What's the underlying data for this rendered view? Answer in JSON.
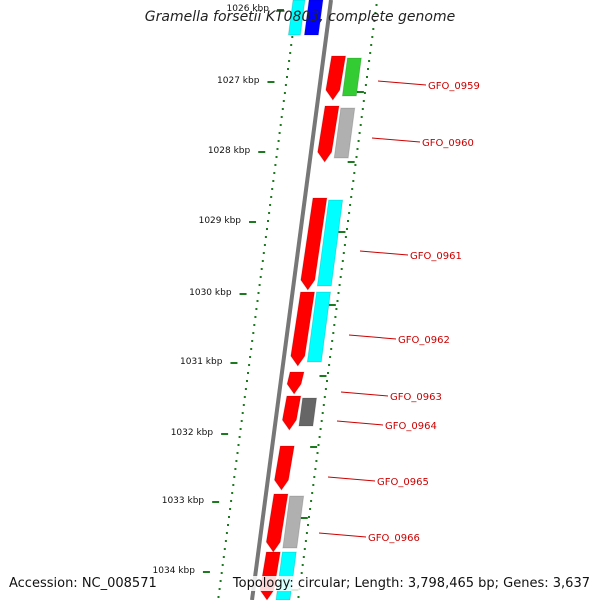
{
  "title": "Gramella forsetii KT0803, complete genome",
  "accession": "Accession: NC_008571",
  "topology": "Topology: circular; Length: 3,798,465 bp; Genes: 3,637",
  "colors": {
    "backbone": "#777777",
    "tick": "#1e7a1e",
    "forward_gene": "#ff0000",
    "label": "#cc0000",
    "cyan": "#00ffff",
    "green": "#33cc33",
    "gray": "#b0b0b0",
    "darkgray": "#666666",
    "blue": "#0000ff"
  },
  "kbp_labels": [
    "1026 kbp",
    "1027 kbp",
    "1028 kbp",
    "1029 kbp",
    "1030 kbp",
    "1031 kbp",
    "1032 kbp",
    "1033 kbp",
    "1034 kbp"
  ],
  "gene_labels": [
    "GFO_0959",
    "GFO_0960",
    "GFO_0961",
    "GFO_0962",
    "GFO_0963",
    "GFO_0964",
    "GFO_0965",
    "GFO_0966"
  ]
}
